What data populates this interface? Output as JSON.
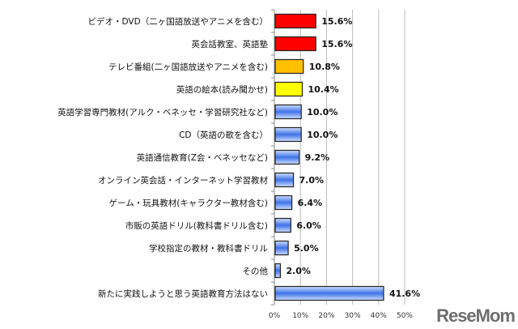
{
  "chart_data": {
    "type": "bar",
    "orientation": "horizontal",
    "categories": [
      "ビデオ・DVD（二ヶ国語放送やアニメを含む）",
      "英会話教室、英語塾",
      "テレビ番組(二ヶ国語放送やアニメを含む)",
      "英語の絵本(読み聞かせ)",
      "英語学習専門教材(アルク・ベネッセ・学習研究社など)",
      "CD（英語の歌を含む）",
      "英語通信教育(Z会・ベネッセなど)",
      "オンライン英会話・インターネット学習教材",
      "ゲーム・玩具教材(キャラクター教材含む)",
      "市販の英語ドリル(教科書ドリル含む)",
      "学校指定の教材・教科書ドリル",
      "その他",
      "新たに実践しようと思う英語教育方法はない"
    ],
    "values": [
      15.6,
      15.6,
      10.8,
      10.4,
      10.0,
      10.0,
      9.2,
      7.0,
      6.4,
      6.0,
      5.0,
      2.0,
      41.6
    ],
    "value_labels": [
      "15.6%",
      "15.6%",
      "10.8%",
      "10.4%",
      "10.0%",
      "10.0%",
      "9.2%",
      "7.0%",
      "6.4%",
      "6.0%",
      "5.0%",
      "2.0%",
      "41.6%"
    ],
    "colors": [
      "#ff0000",
      "#ff0000",
      "#ffc000",
      "#ffff00",
      "#5b8ef0",
      "#5b8ef0",
      "#5b8ef0",
      "#5b8ef0",
      "#5b8ef0",
      "#5b8ef0",
      "#5b8ef0",
      "#5b8ef0",
      "#5b8ef0"
    ],
    "xlim": [
      0,
      50
    ],
    "ticks": [
      "0%",
      "10%",
      "20%",
      "30%",
      "40%",
      "50%"
    ],
    "grid": true
  },
  "watermark": "ReseMom"
}
